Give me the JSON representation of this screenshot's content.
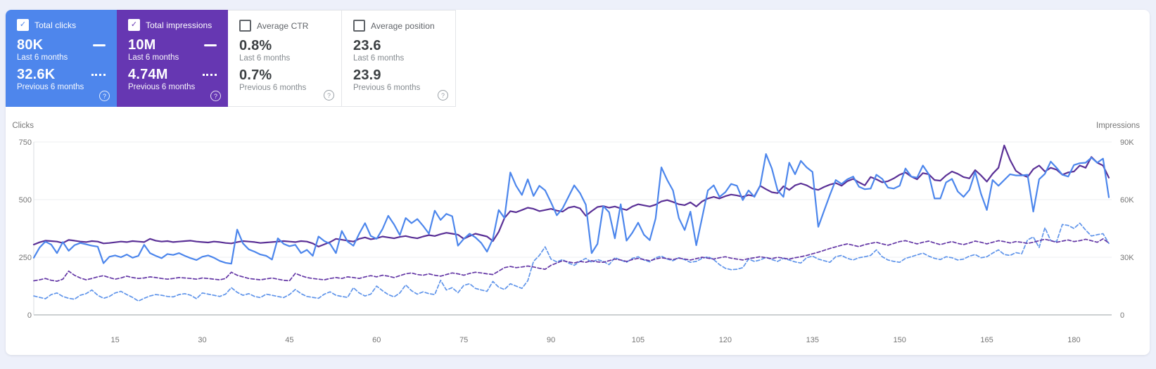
{
  "colors": {
    "page_background": "#edf0fa",
    "panel_background": "#ffffff",
    "clicks_accent": "#4e86ec",
    "impressions_accent": "#6637b2",
    "clicks_line": "#4c86ec",
    "clicks_prev_line": "#5f94ea",
    "impressions_line": "#5a3096",
    "impressions_prev_line": "#6336a5",
    "grid_line": "#eceff1",
    "axis_text": "#757575"
  },
  "cards": [
    {
      "label": "Total clicks",
      "checked": true,
      "bg": "#4e86ec",
      "check_color": "#4e86ec",
      "primary_value": "80K",
      "primary_period": "Last 6 months",
      "secondary_value": "32.6K",
      "secondary_period": "Previous 6 months",
      "help": "?"
    },
    {
      "label": "Total impressions",
      "checked": true,
      "bg": "#6637b2",
      "check_color": "#6637b2",
      "primary_value": "10M",
      "primary_period": "Last 6 months",
      "secondary_value": "4.74M",
      "secondary_period": "Previous 6 months",
      "help": "?"
    },
    {
      "label": "Average CTR",
      "checked": false,
      "bg": "#ffffff",
      "check_color": "#ffffff",
      "primary_value": "0.8%",
      "primary_period": "Last 6 months",
      "secondary_value": "0.7%",
      "secondary_period": "Previous 6 months",
      "help": "?"
    },
    {
      "label": "Average position",
      "checked": false,
      "bg": "#ffffff",
      "check_color": "#ffffff",
      "primary_value": "23.6",
      "primary_period": "Last 6 months",
      "secondary_value": "23.9",
      "secondary_period": "Previous 6 months",
      "help": "?"
    }
  ],
  "chart_data": {
    "type": "line",
    "days": 186,
    "x_ticks": [
      15,
      30,
      45,
      60,
      75,
      90,
      105,
      120,
      135,
      150,
      165,
      180
    ],
    "left_axis": {
      "label": "Clicks",
      "max": 750,
      "tick_values": [
        0,
        250,
        500,
        750
      ],
      "tick_labels": [
        "0",
        "250",
        "500",
        "750"
      ]
    },
    "right_axis": {
      "label": "Impressions",
      "max": 90000,
      "tick_values": [
        0,
        30000,
        60000,
        90000
      ],
      "tick_labels": [
        "0",
        "30K",
        "60K",
        "90K"
      ]
    },
    "grid": true,
    "legend_position": "cards-top",
    "series": [
      {
        "id": "clicks-previous-6-months",
        "name": "Clicks — Previous 6 months",
        "axis": "left",
        "style": "dashed",
        "color": "#5f94ea",
        "values": [
          82,
          76,
          70,
          88,
          95,
          80,
          72,
          68,
          85,
          92,
          108,
          85,
          72,
          80,
          95,
          102,
          88,
          76,
          60,
          72,
          82,
          88,
          85,
          80,
          78,
          88,
          92,
          85,
          70,
          95,
          90,
          85,
          80,
          90,
          118,
          98,
          85,
          92,
          80,
          75,
          90,
          85,
          80,
          75,
          88,
          110,
          92,
          80,
          76,
          72,
          90,
          100,
          85,
          80,
          76,
          118,
          95,
          82,
          90,
          125,
          105,
          88,
          78,
          95,
          130,
          105,
          90,
          100,
          92,
          88,
          150,
          108,
          118,
          96,
          128,
          135,
          115,
          108,
          102,
          145,
          120,
          110,
          135,
          125,
          115,
          148,
          232,
          258,
          295,
          242,
          230,
          240,
          225,
          215,
          232,
          245,
          228,
          240,
          232,
          218,
          248,
          238,
          228,
          245,
          252,
          238,
          230,
          248,
          255,
          242,
          235,
          248,
          240,
          228,
          232,
          245,
          252,
          240,
          218,
          202,
          196,
          198,
          205,
          242,
          232,
          238,
          250,
          240,
          232,
          245,
          238,
          230,
          225,
          248,
          255,
          242,
          235,
          228,
          252,
          258,
          245,
          238,
          248,
          252,
          258,
          282,
          252,
          238,
          232,
          228,
          245,
          252,
          260,
          268,
          255,
          245,
          240,
          252,
          248,
          238,
          242,
          255,
          262,
          248,
          252,
          268,
          282,
          262,
          258,
          270,
          265,
          325,
          338,
          292,
          378,
          322,
          318,
          392,
          388,
          375,
          398,
          368,
          342,
          348,
          352,
          310
        ]
      },
      {
        "id": "impressions-previous-6-months",
        "name": "Impressions — Previous 6 months",
        "axis": "right",
        "style": "dashed",
        "color": "#6336a5",
        "values": [
          17760,
          18240,
          18960,
          18000,
          17520,
          18600,
          22800,
          20640,
          19200,
          18240,
          18960,
          19800,
          20400,
          19440,
          18600,
          19200,
          20160,
          19440,
          18960,
          19200,
          19800,
          19440,
          18960,
          18600,
          18960,
          19440,
          19200,
          18960,
          18600,
          19200,
          18960,
          18600,
          18240,
          18960,
          22200,
          20640,
          19800,
          18960,
          18600,
          18240,
          18720,
          19200,
          18600,
          18000,
          17760,
          21600,
          20400,
          19440,
          18960,
          18600,
          18240,
          18960,
          19440,
          18960,
          19800,
          19440,
          18960,
          19800,
          20400,
          19800,
          20640,
          20160,
          19440,
          20400,
          21360,
          21840,
          21000,
          20640,
          21360,
          20640,
          20160,
          21000,
          21840,
          21360,
          20640,
          21600,
          22200,
          21840,
          21360,
          21000,
          22800,
          24600,
          25200,
          24600,
          24960,
          25440,
          24960,
          24240,
          23760,
          25800,
          27000,
          28200,
          27600,
          27000,
          27840,
          27360,
          28200,
          27600,
          27360,
          28200,
          29040,
          28560,
          27840,
          28800,
          29400,
          28800,
          28200,
          29040,
          29760,
          29280,
          28800,
          29520,
          29040,
          28560,
          29280,
          30000,
          29520,
          29040,
          29760,
          30240,
          29520,
          29040,
          28560,
          29280,
          29760,
          30240,
          29760,
          29280,
          30000,
          29520,
          29040,
          29760,
          30240,
          30960,
          31800,
          32640,
          33600,
          34560,
          35400,
          36240,
          36960,
          36240,
          35520,
          36600,
          37200,
          37800,
          36960,
          36240,
          37200,
          38160,
          38640,
          37800,
          36960,
          37800,
          38400,
          37440,
          36600,
          37440,
          38160,
          37200,
          36600,
          37440,
          38400,
          37800,
          36960,
          37800,
          38640,
          38160,
          37440,
          38160,
          37800,
          37200,
          37800,
          38640,
          39360,
          38640,
          37800,
          38400,
          39000,
          38160,
          38640,
          39360,
          38640,
          37800,
          39600,
          37440
        ]
      },
      {
        "id": "impressions-last-6-months",
        "name": "Impressions — Last 6 months",
        "axis": "right",
        "style": "solid",
        "color": "#5a3096",
        "values": [
          36600,
          37800,
          38640,
          38400,
          38160,
          37440,
          39000,
          38640,
          38160,
          37920,
          38400,
          38160,
          37200,
          37440,
          37800,
          38160,
          37920,
          38400,
          38160,
          37920,
          39600,
          38640,
          38160,
          38400,
          37920,
          38160,
          38400,
          38640,
          38160,
          37920,
          37680,
          38160,
          37920,
          37440,
          37200,
          37920,
          38400,
          38160,
          37920,
          37440,
          37680,
          37920,
          38160,
          38400,
          38160,
          37920,
          38400,
          38160,
          37200,
          35520,
          36720,
          37920,
          39600,
          39120,
          38640,
          38160,
          39600,
          40320,
          39360,
          39840,
          40800,
          40320,
          39840,
          40560,
          41040,
          40320,
          39840,
          40800,
          41520,
          41040,
          42000,
          42720,
          42240,
          41760,
          39600,
          41040,
          42240,
          41520,
          40800,
          38400,
          43200,
          50400,
          54000,
          53400,
          54600,
          55800,
          55200,
          54000,
          54600,
          55200,
          54240,
          53760,
          55800,
          56400,
          55440,
          51600,
          54000,
          56160,
          56640,
          55800,
          56400,
          55440,
          54600,
          56400,
          57600,
          57000,
          56400,
          57360,
          59040,
          59760,
          58800,
          57600,
          57120,
          58560,
          56400,
          59040,
          60600,
          61440,
          60600,
          61800,
          62640,
          62160,
          61440,
          62400,
          61800,
          67200,
          65400,
          63840,
          63360,
          66960,
          65040,
          67440,
          68400,
          67440,
          65760,
          65040,
          66600,
          67800,
          68640,
          67200,
          69600,
          70800,
          69000,
          67440,
          71760,
          70560,
          69000,
          69600,
          71040,
          72960,
          74160,
          72000,
          70560,
          73800,
          73200,
          70200,
          69840,
          72600,
          74640,
          73440,
          71760,
          71040,
          75360,
          72600,
          69360,
          73440,
          76560,
          88200,
          80640,
          75000,
          72960,
          71760,
          75840,
          77760,
          74640,
          76560,
          75600,
          72960,
          74160,
          74640,
          77760,
          76560,
          82200,
          79200,
          77760,
          71400
        ]
      },
      {
        "id": "clicks-last-6-months",
        "name": "Clicks — Last 6 months",
        "axis": "left",
        "style": "solid",
        "color": "#4c86ec",
        "values": [
          248,
          292,
          318,
          305,
          268,
          316,
          278,
          302,
          312,
          306,
          300,
          296,
          224,
          252,
          258,
          250,
          262,
          248,
          256,
          304,
          268,
          256,
          246,
          264,
          260,
          268,
          256,
          246,
          238,
          252,
          258,
          248,
          234,
          226,
          222,
          370,
          310,
          284,
          274,
          262,
          256,
          240,
          332,
          308,
          298,
          304,
          268,
          282,
          256,
          340,
          320,
          308,
          268,
          364,
          318,
          300,
          352,
          398,
          342,
          330,
          372,
          430,
          392,
          346,
          420,
          398,
          416,
          386,
          352,
          452,
          412,
          438,
          428,
          300,
          330,
          352,
          336,
          312,
          274,
          330,
          455,
          420,
          618,
          560,
          520,
          588,
          516,
          560,
          540,
          488,
          432,
          462,
          512,
          562,
          528,
          478,
          268,
          308,
          472,
          445,
          332,
          480,
          322,
          356,
          400,
          348,
          324,
          418,
          640,
          585,
          540,
          420,
          368,
          448,
          302,
          420,
          540,
          562,
          512,
          532,
          568,
          560,
          498,
          540,
          512,
          560,
          698,
          635,
          540,
          512,
          660,
          610,
          668,
          640,
          620,
          382,
          452,
          520,
          585,
          568,
          588,
          600,
          556,
          545,
          548,
          608,
          590,
          552,
          548,
          560,
          635,
          600,
          595,
          648,
          610,
          505,
          505,
          575,
          590,
          535,
          512,
          542,
          620,
          525,
          455,
          585,
          560,
          585,
          610,
          605,
          605,
          608,
          448,
          588,
          612,
          665,
          638,
          608,
          600,
          650,
          658,
          660,
          682,
          660,
          678,
          510
        ]
      }
    ]
  }
}
